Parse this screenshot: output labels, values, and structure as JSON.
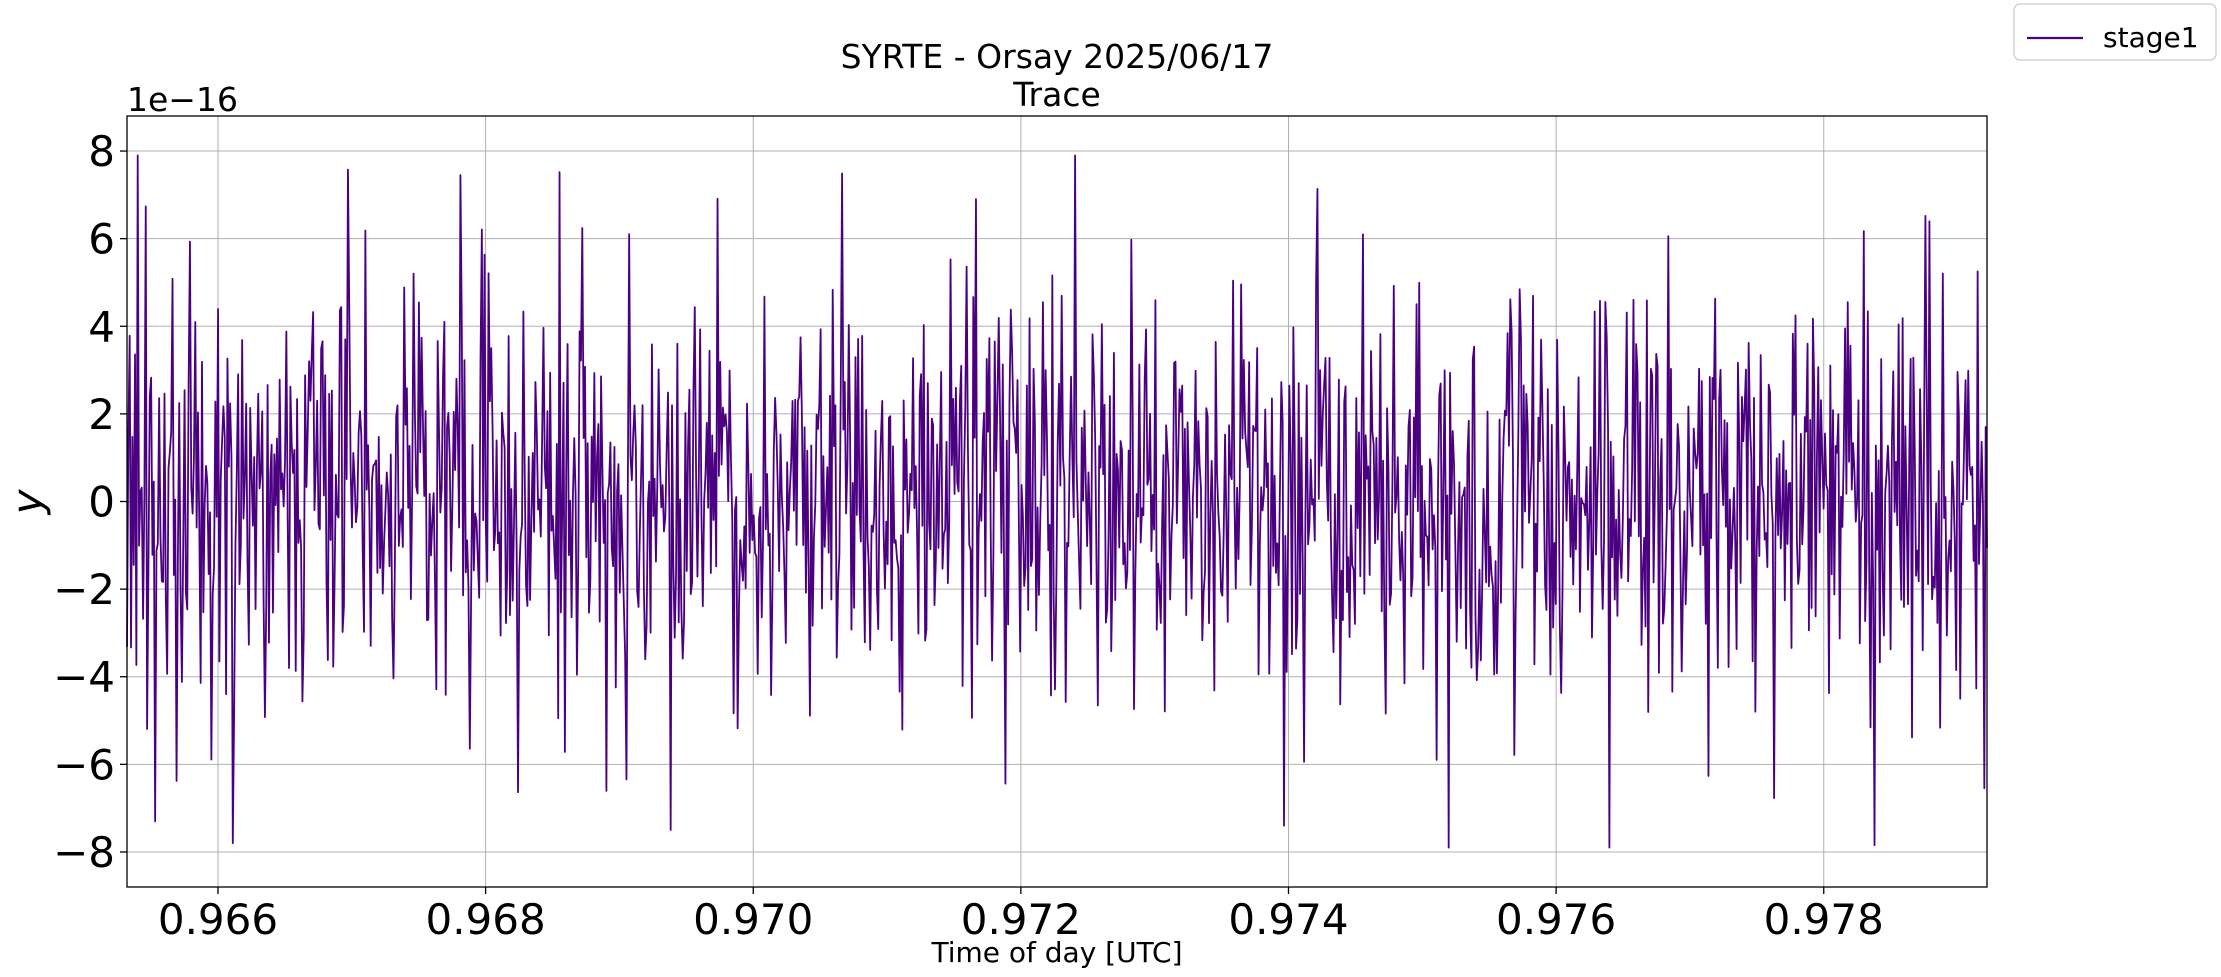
{
  "chart_data": {
    "type": "line",
    "title": "SYRTE - Orsay 2025/06/17",
    "subtitle": "Trace",
    "xlabel": "Time of day [UTC]",
    "ylabel": "y",
    "offset_text": "1e−16",
    "xlim": [
      0.96532,
      0.97922
    ],
    "ylim": [
      -8.8,
      8.8
    ],
    "xticks": [
      0.966,
      0.968,
      0.97,
      0.972,
      0.974,
      0.976,
      0.978
    ],
    "xtick_labels": [
      "0.966",
      "0.968",
      "0.970",
      "0.972",
      "0.974",
      "0.976",
      "0.978"
    ],
    "yticks": [
      -8,
      -6,
      -4,
      -2,
      0,
      2,
      4,
      6,
      8
    ],
    "ytick_labels": [
      "−8",
      "−6",
      "−4",
      "−2",
      "0",
      "2",
      "4",
      "6",
      "8"
    ],
    "grid": true,
    "legend_position": "top-right (outside axes)",
    "series": [
      {
        "name": "stage1",
        "color": "#4b0082",
        "num_points": 1390,
        "amplitude_range": [
          -7.9,
          7.9
        ],
        "description": "noise-like trace, approx. zero-mean, std about 2.5 (in units of 1e-16)"
      }
    ]
  }
}
